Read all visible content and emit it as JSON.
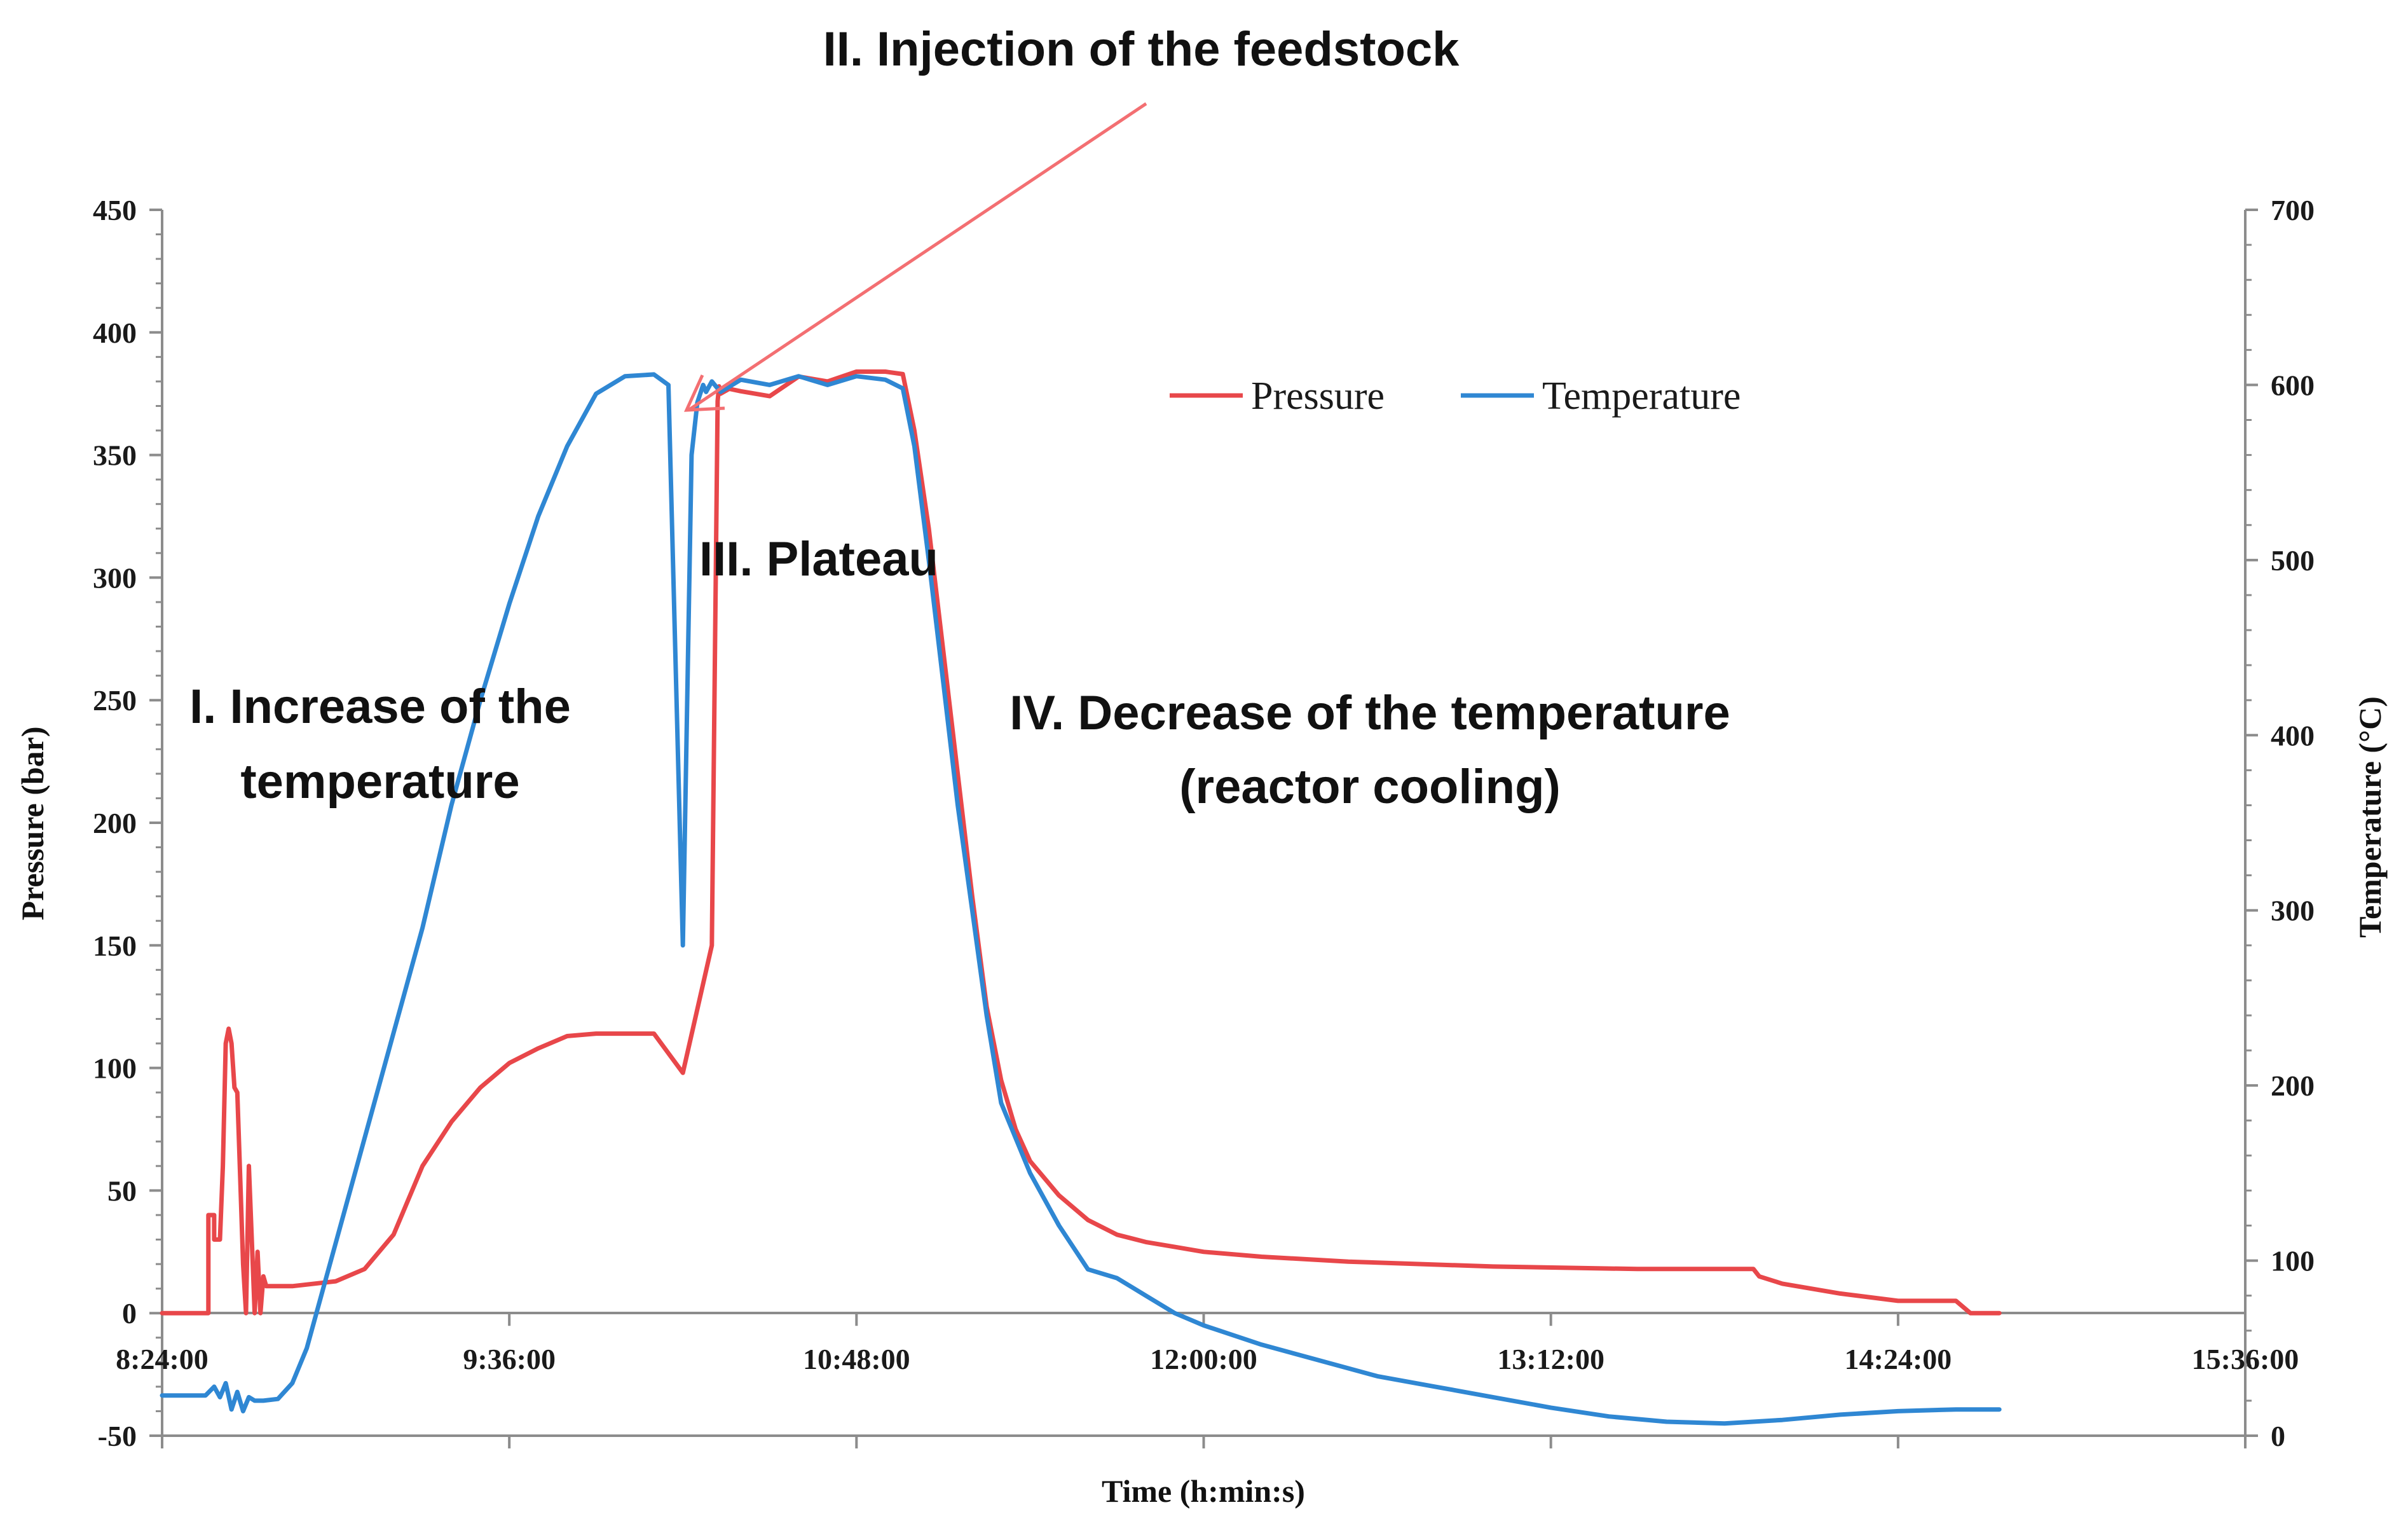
{
  "chart_data": {
    "type": "line",
    "title": "",
    "xlabel": "Time (h:min:s)",
    "ylabel": "Pressure  (bar)",
    "y2label": "Temperature (°C)",
    "xlim": [
      8.4,
      15.6
    ],
    "ylim": [
      -50,
      450
    ],
    "y2lim": [
      0,
      700
    ],
    "x_ticks": [
      8.4,
      9.6,
      10.8,
      12.0,
      13.2,
      14.4,
      15.6
    ],
    "x_tick_labels": [
      "8:24:00",
      "9:36:00",
      "10:48:00",
      "12:00:00",
      "13:12:00",
      "14:24:00",
      "15:36:00"
    ],
    "y_ticks": [
      -50,
      0,
      50,
      100,
      150,
      200,
      250,
      300,
      350,
      400,
      450
    ],
    "y_tick_labels": [
      "-50",
      "0",
      "50",
      "100",
      "150",
      "200",
      "250",
      "300",
      "350",
      "400",
      "450"
    ],
    "y2_ticks": [
      0,
      100,
      200,
      300,
      400,
      500,
      600,
      700
    ],
    "y2_tick_labels": [
      "0",
      "100",
      "200",
      "300",
      "400",
      "500",
      "600",
      "700"
    ],
    "grid": false,
    "legend_position": "top-right",
    "series": [
      {
        "name": "Pressure",
        "axis": "left",
        "color": "#e8474a",
        "x": [
          8.4,
          8.56,
          8.56,
          8.58,
          8.58,
          8.6,
          8.61,
          8.62,
          8.63,
          8.64,
          8.65,
          8.66,
          8.67,
          8.68,
          8.69,
          8.7,
          8.71,
          8.72,
          8.73,
          8.74,
          8.75,
          8.76,
          8.78,
          8.85,
          9.0,
          9.1,
          9.2,
          9.3,
          9.4,
          9.5,
          9.6,
          9.7,
          9.8,
          9.9,
          10.0,
          10.1,
          10.2,
          10.3,
          10.32,
          10.325,
          10.33,
          10.36,
          10.4,
          10.5,
          10.6,
          10.7,
          10.8,
          10.9,
          10.96,
          11.0,
          11.05,
          11.1,
          11.15,
          11.2,
          11.25,
          11.3,
          11.35,
          11.4,
          11.5,
          11.6,
          11.7,
          11.8,
          11.9,
          12.0,
          12.2,
          12.5,
          13.0,
          13.5,
          13.9,
          13.92,
          14.0,
          14.2,
          14.4,
          14.6,
          14.65,
          14.75
        ],
        "y": [
          0,
          0,
          40,
          40,
          30,
          30,
          60,
          110,
          116,
          110,
          92,
          90,
          55,
          20,
          0,
          60,
          30,
          0,
          25,
          0,
          15,
          11,
          11,
          11,
          13,
          18,
          32,
          60,
          78,
          92,
          102,
          108,
          113,
          114,
          114,
          114,
          98,
          150,
          372,
          378,
          375,
          377,
          376,
          374,
          382,
          380,
          384,
          384,
          383,
          360,
          320,
          270,
          220,
          170,
          125,
          95,
          75,
          62,
          48,
          38,
          32,
          29,
          27,
          25,
          23,
          21,
          19,
          18,
          18,
          15,
          12,
          8,
          5,
          5,
          0,
          0
        ]
      },
      {
        "name": "Temperature",
        "axis": "right",
        "color": "#2f87d3",
        "x": [
          8.4,
          8.55,
          8.58,
          8.6,
          8.62,
          8.64,
          8.66,
          8.68,
          8.7,
          8.72,
          8.75,
          8.8,
          8.85,
          8.9,
          9.0,
          9.1,
          9.2,
          9.3,
          9.4,
          9.5,
          9.6,
          9.7,
          9.8,
          9.9,
          10.0,
          10.1,
          10.15,
          10.2,
          10.23,
          10.25,
          10.27,
          10.28,
          10.3,
          10.33,
          10.4,
          10.5,
          10.6,
          10.7,
          10.8,
          10.9,
          10.96,
          11.0,
          11.05,
          11.1,
          11.15,
          11.2,
          11.25,
          11.3,
          11.4,
          11.5,
          11.6,
          11.7,
          11.8,
          11.9,
          12.0,
          12.2,
          12.4,
          12.6,
          12.8,
          13.0,
          13.2,
          13.4,
          13.6,
          13.8,
          14.0,
          14.2,
          14.4,
          14.6,
          14.75
        ],
        "y": [
          23,
          23,
          28,
          22,
          30,
          15,
          25,
          14,
          22,
          20,
          20,
          21,
          30,
          50,
          110,
          170,
          230,
          290,
          360,
          420,
          475,
          525,
          565,
          595,
          605,
          606,
          600,
          280,
          560,
          590,
          600,
          596,
          602,
          596,
          603,
          600,
          605,
          600,
          605,
          603,
          598,
          565,
          500,
          430,
          360,
          300,
          240,
          190,
          150,
          120,
          95,
          90,
          80,
          70,
          63,
          52,
          43,
          34,
          28,
          22,
          16,
          11,
          8,
          7,
          9,
          12,
          14,
          15,
          15
        ]
      }
    ],
    "annotations": [
      {
        "id": "phase-1",
        "lines": [
          "I. Increase of the",
          "temperature"
        ]
      },
      {
        "id": "phase-2",
        "lines": [
          "II. Injection of the feedstock"
        ]
      },
      {
        "id": "phase-3",
        "lines": [
          "III. Plateau"
        ]
      },
      {
        "id": "phase-4",
        "lines": [
          "IV. Decrease  of the temperature",
          "(reactor cooling)"
        ]
      }
    ]
  }
}
